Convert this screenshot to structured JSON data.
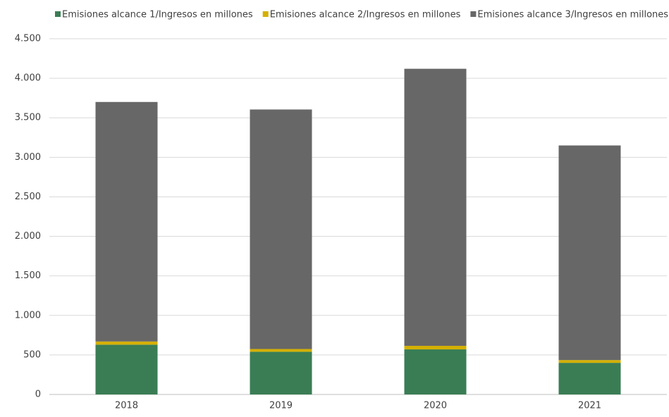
{
  "chart_data": {
    "type": "stacked_bar",
    "categories": [
      "2018",
      "2019",
      "2020",
      "2021"
    ],
    "series": [
      {
        "name": "Emisiones alcance 1/Ingresos en millones",
        "color": "#3a7d55",
        "values": [
          630,
          540,
          570,
          400
        ]
      },
      {
        "name": "Emisiones alcance 2/Ingresos en millones",
        "color": "#d4b000",
        "values": [
          40,
          35,
          45,
          35
        ]
      },
      {
        "name": "Emisiones alcance 3/Ingresos en millones",
        "color": "#676767",
        "values": [
          3030,
          3030,
          3505,
          2715
        ]
      }
    ],
    "ylim": [
      0,
      4500
    ],
    "yticks": [
      0,
      500,
      {
        "value": 1000,
        "label": "1.000"
      },
      {
        "value": 1500,
        "label": "1.500"
      },
      {
        "value": 2000,
        "label": "2.000"
      },
      {
        "value": 2500,
        "label": "2.500"
      },
      {
        "value": 3000,
        "label": "3.000"
      },
      {
        "value": 3500,
        "label": "3.500"
      },
      {
        "value": 4000,
        "label": "4.000"
      },
      {
        "value": 4500,
        "label": "4.500"
      }
    ],
    "grid": true,
    "legend": "top"
  }
}
